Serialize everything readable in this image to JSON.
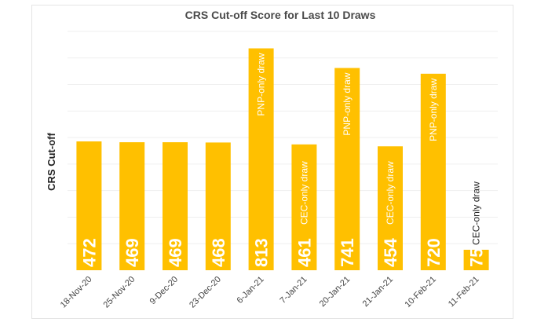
{
  "chart_data": {
    "type": "bar",
    "title": "CRS Cut-off Score for Last 10 Draws",
    "xlabel": "",
    "ylabel": "CRS Cut-off",
    "ylim": [
      0,
      875
    ],
    "grid": true,
    "categories": [
      "18-Nov-20",
      "25-Nov-20",
      "9-Dec-20",
      "23-Dec-20",
      "6-Jan-21",
      "7-Jan-21",
      "20-Jan-21",
      "21-Jan-21",
      "10-Feb-21",
      "11-Feb-21"
    ],
    "values": [
      472,
      469,
      469,
      468,
      813,
      461,
      741,
      454,
      720,
      75
    ],
    "annotations": [
      "",
      "",
      "",
      "",
      "PNP-only draw",
      "CEC-only draw",
      "PNP-only draw",
      "CEC-only draw",
      "PNP-only draw",
      "CEC-only draw"
    ],
    "bar_color": "#FFC000"
  }
}
